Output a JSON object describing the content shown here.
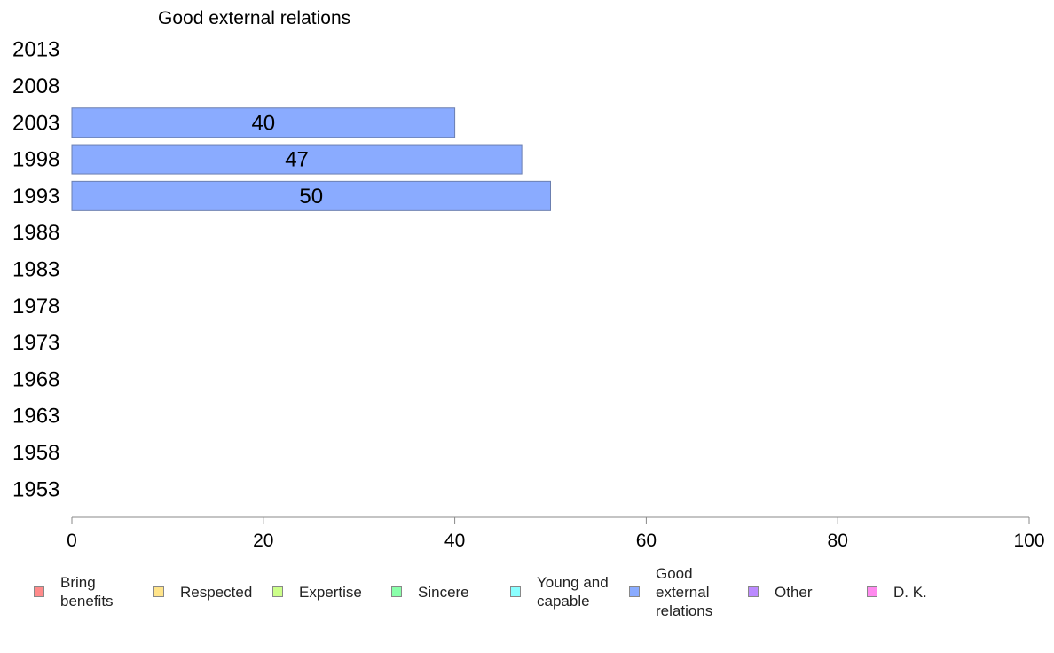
{
  "chart_data": {
    "type": "bar",
    "orientation": "horizontal",
    "title": "Good external relations",
    "categories": [
      "2013",
      "2008",
      "2003",
      "1998",
      "1993",
      "1988",
      "1983",
      "1978",
      "1973",
      "1968",
      "1963",
      "1958",
      "1953"
    ],
    "series": [
      {
        "name": "Good external relations",
        "color": "#8aabff",
        "values": [
          null,
          null,
          40,
          47,
          50,
          null,
          null,
          null,
          null,
          null,
          null,
          null,
          null
        ],
        "labels": [
          "",
          "",
          "40",
          "47",
          "50",
          "",
          "",
          "",
          "",
          "",
          "",
          "",
          ""
        ]
      }
    ],
    "xlim": [
      0,
      100
    ],
    "xticks": [
      "0",
      "20",
      "40",
      "60",
      "80",
      "100"
    ],
    "grid": false,
    "legend_position": "bottom",
    "legend": [
      {
        "label": "Bring benefits",
        "color": "#ff8a8a"
      },
      {
        "label": "Respected",
        "color": "#ffe48a"
      },
      {
        "label": "Expertise",
        "color": "#ccff8a"
      },
      {
        "label": "Sincere",
        "color": "#8affaa"
      },
      {
        "label": "Young and capable",
        "color": "#8affff"
      },
      {
        "label": "Good external relations",
        "color": "#8aabff"
      },
      {
        "label": "Other",
        "color": "#bb8aff"
      },
      {
        "label": "D. K.",
        "color": "#ff8aee"
      }
    ]
  }
}
